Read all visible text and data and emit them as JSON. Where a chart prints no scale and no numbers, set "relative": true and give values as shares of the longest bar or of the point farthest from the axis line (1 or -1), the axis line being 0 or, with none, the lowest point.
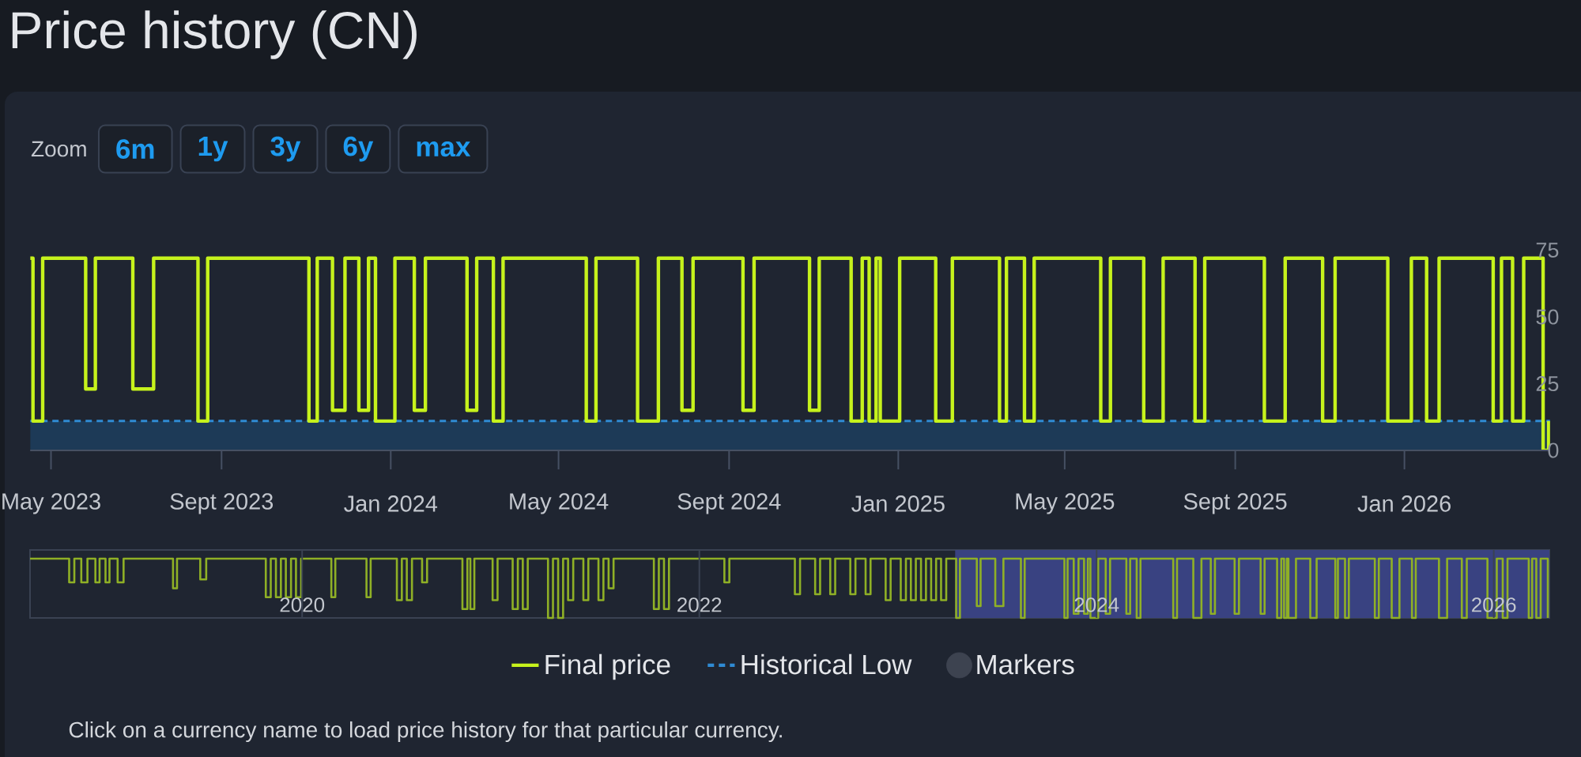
{
  "chart_data": [
    {
      "type": "step",
      "title": "Price history (CN)",
      "annotations": [
        "Zoom",
        "6m",
        "1y",
        "3y",
        "6y",
        "max",
        "Click on a currency name to load price history for that particular currency."
      ],
      "xlim": [
        "2023-04-16",
        "2026-04-16"
      ],
      "ylim": [
        0,
        75
      ],
      "xticks": [
        {
          "value": "2023-05-01",
          "label": "May 2023"
        },
        {
          "value": "2023-09-01",
          "label": "Sept 2023"
        },
        {
          "value": "2024-01-01",
          "label": "Jan 2024"
        },
        {
          "value": "2024-05-01",
          "label": "May 2024"
        },
        {
          "value": "2024-09-01",
          "label": "Sept 2024"
        },
        {
          "value": "2025-01-01",
          "label": "Jan 2025"
        },
        {
          "value": "2025-05-01",
          "label": "May 2025"
        },
        {
          "value": "2025-09-01",
          "label": "Sept 2025"
        },
        {
          "value": "2026-01-01",
          "label": "Jan 2026"
        }
      ],
      "yticks": [
        0,
        25,
        50,
        75
      ],
      "legend": "bottom",
      "bands": [
        {
          "axis": "y",
          "from": 0,
          "to": 11,
          "color": "#1d3a57"
        }
      ],
      "series": [
        {
          "name": "Final price",
          "color": "#c6f21c",
          "x": [
            "2023-04-16",
            "2023-04-18",
            "2023-04-25",
            "2023-05-26",
            "2023-06-02",
            "2023-06-29",
            "2023-07-14",
            "2023-08-15",
            "2023-08-22",
            "2023-11-03",
            "2023-11-09",
            "2023-11-20",
            "2023-11-29",
            "2023-12-09",
            "2023-12-16",
            "2023-12-21",
            "2024-01-04",
            "2024-01-18",
            "2024-01-26",
            "2024-02-25",
            "2024-03-03",
            "2024-03-15",
            "2024-03-22",
            "2024-05-21",
            "2024-05-28",
            "2024-06-27",
            "2024-07-12",
            "2024-07-29",
            "2024-08-06",
            "2024-09-11",
            "2024-09-19",
            "2024-10-29",
            "2024-11-05",
            "2024-11-28",
            "2024-12-06",
            "2024-12-11",
            "2024-12-16",
            "2024-12-19",
            "2025-01-02",
            "2025-01-28",
            "2025-02-09",
            "2025-03-15",
            "2025-03-20",
            "2025-04-02",
            "2025-04-09",
            "2025-05-27",
            "2025-06-03",
            "2025-06-27",
            "2025-07-11",
            "2025-08-03",
            "2025-08-10",
            "2025-09-22",
            "2025-10-07",
            "2025-11-03",
            "2025-11-12",
            "2025-12-20",
            "2026-01-06",
            "2026-01-17",
            "2026-01-26",
            "2026-03-06",
            "2026-03-12",
            "2026-03-20",
            "2026-03-28",
            "2026-04-11",
            "2026-04-15"
          ],
          "values": [
            72,
            11,
            72,
            23,
            72,
            23,
            72,
            11,
            72,
            11,
            72,
            15,
            72,
            15,
            72,
            11,
            72,
            15,
            72,
            15,
            72,
            11,
            72,
            11,
            72,
            11,
            72,
            15,
            72,
            15,
            72,
            15,
            72,
            11,
            72,
            11,
            72,
            11,
            72,
            11,
            72,
            11,
            72,
            11,
            72,
            11,
            72,
            11,
            72,
            11,
            72,
            11,
            72,
            11,
            72,
            11,
            72,
            11,
            72,
            11,
            72,
            11,
            72,
            0,
            11
          ]
        },
        {
          "name": "Historical Low",
          "type": "line",
          "color": "#2f8bd3",
          "line_style": "dashed",
          "x": [
            "2023-04-16",
            "2026-04-16"
          ],
          "values": [
            11,
            11
          ]
        },
        {
          "name": "Markers",
          "type": "scatter",
          "color": "#3d4350",
          "marker": "circle"
        }
      ]
    },
    {
      "type": "step",
      "relative": true,
      "color": "#8fb026",
      "xlim": [
        2018.63,
        2026.28
      ],
      "xticks": [
        2020,
        2022,
        2024,
        2026
      ],
      "grid": "x",
      "bands": [
        {
          "axis": "x",
          "from": 2023.288,
          "to": 2026.28,
          "color": "#394281"
        }
      ],
      "x": [
        2018.63,
        2018.827,
        2018.853,
        2018.888,
        2018.919,
        2018.959,
        2018.98,
        2019.01,
        2019.03,
        2019.071,
        2019.101,
        2019.35,
        2019.37,
        2019.487,
        2019.517,
        2019.817,
        2019.842,
        2019.868,
        2019.893,
        2019.918,
        2019.944,
        2019.969,
        2019.995,
        2020.147,
        2020.167,
        2020.324,
        2020.345,
        2020.477,
        2020.502,
        2020.527,
        2020.553,
        2020.604,
        2020.629,
        2020.807,
        2020.832,
        2020.847,
        2020.867,
        2020.959,
        2020.984,
        2021.06,
        2021.086,
        2021.111,
        2021.136,
        2021.238,
        2021.263,
        2021.289,
        2021.314,
        2021.339,
        2021.365,
        2021.416,
        2021.441,
        2021.492,
        2021.517,
        2021.543,
        2021.568,
        2021.771,
        2021.796,
        2021.822,
        2021.847,
        2022.126,
        2022.151,
        2022.481,
        2022.507,
        2022.583,
        2022.608,
        2022.659,
        2022.684,
        2022.76,
        2022.786,
        2022.837,
        2022.862,
        2022.938,
        2022.963,
        2023.014,
        2023.04,
        2023.065,
        2023.09,
        2023.116,
        2023.141,
        2023.167,
        2023.192,
        2023.217,
        2023.243,
        2023.293,
        2023.312,
        2023.397,
        2023.416,
        2023.49,
        2023.531,
        2023.619,
        2023.638,
        2023.838,
        2023.854,
        2023.885,
        2023.909,
        2023.937,
        2023.956,
        2023.969,
        2024.008,
        2024.046,
        2024.068,
        2024.15,
        2024.169,
        2024.202,
        2024.221,
        2024.386,
        2024.405,
        2024.487,
        2024.528,
        2024.575,
        2024.596,
        2024.695,
        2024.717,
        2024.826,
        2024.846,
        2024.909,
        2024.93,
        2024.944,
        2024.958,
        2024.966,
        2025.004,
        2025.076,
        2025.108,
        2025.202,
        2025.215,
        2025.251,
        2025.27,
        2025.401,
        2025.421,
        2025.486,
        2025.525,
        2025.588,
        2025.607,
        2025.724,
        2025.765,
        2025.839,
        2025.864,
        2025.968,
        2026.015,
        2026.045,
        2026.069,
        2026.176,
        2026.193,
        2026.214,
        2026.236,
        2026.272
      ],
      "values": [
        1,
        0.6,
        1,
        0.6,
        1,
        0.6,
        1,
        0.6,
        1,
        0.6,
        1,
        0.5,
        1,
        0.65,
        1,
        0.35,
        1,
        0.35,
        1,
        0.35,
        1,
        0.35,
        1,
        0.35,
        1,
        0.35,
        1,
        0.3,
        1,
        0.3,
        1,
        0.6,
        1,
        0.15,
        1,
        0.15,
        1,
        0.3,
        1,
        0.15,
        1,
        0.15,
        1,
        0,
        1,
        0,
        1,
        0.3,
        1,
        0.3,
        1,
        0.3,
        1,
        0.5,
        1,
        0.15,
        1,
        0.15,
        1,
        0.6,
        1,
        0.4,
        1,
        0.4,
        1,
        0.4,
        1,
        0.4,
        1,
        0.4,
        1,
        0.3,
        1,
        0.3,
        1,
        0.3,
        1,
        0.3,
        1,
        0.3,
        1,
        0.3,
        1,
        0,
        1,
        0.2,
        1,
        0.2,
        1,
        0,
        1,
        0,
        1,
        0.07,
        1,
        0.07,
        1,
        0,
        1,
        0.07,
        1,
        0.07,
        1,
        0,
        1,
        0,
        1,
        0,
        1,
        0.07,
        1,
        0.07,
        1,
        0.07,
        1,
        0,
        1,
        0,
        1,
        0,
        1,
        0,
        1,
        0,
        1,
        0,
        1,
        0,
        1,
        0,
        1,
        0,
        1,
        0,
        1,
        0,
        1,
        0,
        1,
        0,
        1,
        0,
        1,
        0,
        1,
        0
      ]
    }
  ]
}
